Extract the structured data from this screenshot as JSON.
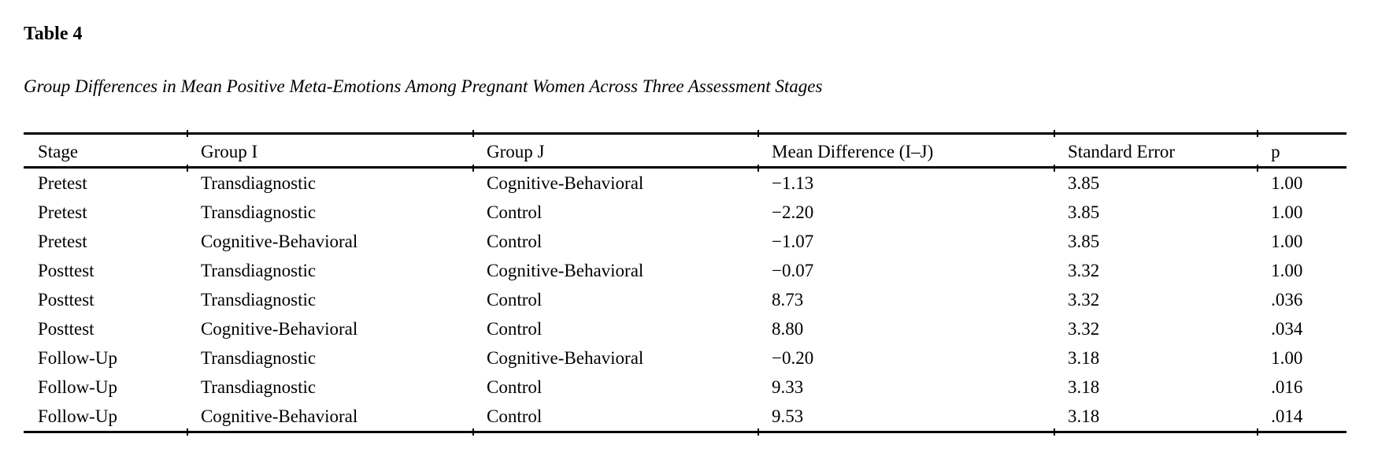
{
  "table": {
    "number_label": "Table 4",
    "caption": "Group Differences in Mean Positive Meta-Emotions Among Pregnant Women Across Three Assessment Stages",
    "headers": [
      "Stage",
      "Group I",
      "Group J",
      "Mean Difference (I–J)",
      "Standard Error",
      "p"
    ],
    "rows": [
      [
        "Pretest",
        "Transdiagnostic",
        "Cognitive-Behavioral",
        "−1.13",
        "3.85",
        "1.00"
      ],
      [
        "Pretest",
        "Transdiagnostic",
        "Control",
        "−2.20",
        "3.85",
        "1.00"
      ],
      [
        "Pretest",
        "Cognitive-Behavioral",
        "Control",
        "−1.07",
        "3.85",
        "1.00"
      ],
      [
        "Posttest",
        "Transdiagnostic",
        "Cognitive-Behavioral",
        "−0.07",
        "3.32",
        "1.00"
      ],
      [
        "Posttest",
        "Transdiagnostic",
        "Control",
        "8.73",
        "3.32",
        ".036"
      ],
      [
        "Posttest",
        "Cognitive-Behavioral",
        "Control",
        "8.80",
        "3.32",
        ".034"
      ],
      [
        "Follow-Up",
        "Transdiagnostic",
        "Cognitive-Behavioral",
        "−0.20",
        "3.18",
        "1.00"
      ],
      [
        "Follow-Up",
        "Transdiagnostic",
        "Control",
        "9.33",
        "3.18",
        ".016"
      ],
      [
        "Follow-Up",
        "Cognitive-Behavioral",
        "Control",
        "9.53",
        "3.18",
        ".014"
      ]
    ],
    "colors": {
      "text": "#000000",
      "background": "#ffffff",
      "rule": "#000000"
    }
  }
}
